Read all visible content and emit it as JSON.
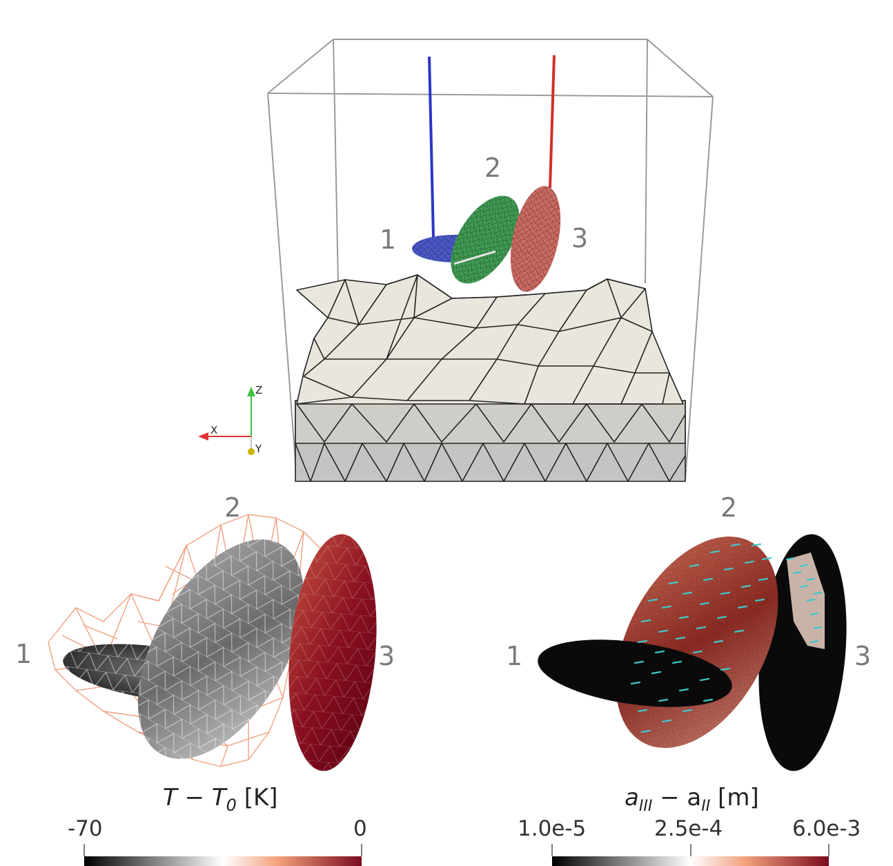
{
  "top_panel": {
    "labels": {
      "one": "1",
      "two": "2",
      "three": "3"
    },
    "axes": {
      "x": "X",
      "y": "Y",
      "z": "Z"
    },
    "colors": {
      "well_1": "#2b35c8",
      "well_3": "#d1302a",
      "fracture_1": "#4a58c8",
      "fracture_2": "#3f9a52",
      "fracture_3": "#cc6a62",
      "terrain": "#e9e6dd",
      "box": "#999999"
    }
  },
  "temperature_panel": {
    "labels": {
      "one": "1",
      "two": "2",
      "three": "3"
    },
    "colorbar": {
      "title": "T − T0 [K]",
      "title_main": "T − T",
      "title_sub": "0",
      "title_unit": " [K]",
      "tick_min": "-70",
      "tick_max": "0",
      "colors": [
        "#000000",
        "#ffffff",
        "#f2a07a",
        "#7a0a1e"
      ]
    }
  },
  "aperture_panel": {
    "labels": {
      "one": "1",
      "two": "2",
      "three": "3"
    },
    "colorbar": {
      "title": "aIII − aII [m]",
      "title_a1": "a",
      "title_sub1": "III",
      "title_mid": " − a",
      "title_sub2": "II",
      "title_unit": " [m]",
      "tick_min": "1.0e-5",
      "tick_mid": "2.5e-4",
      "tick_max": "6.0e-3",
      "colors": [
        "#000000",
        "#ffffff",
        "#f2a07a",
        "#7a0a1e"
      ]
    }
  }
}
